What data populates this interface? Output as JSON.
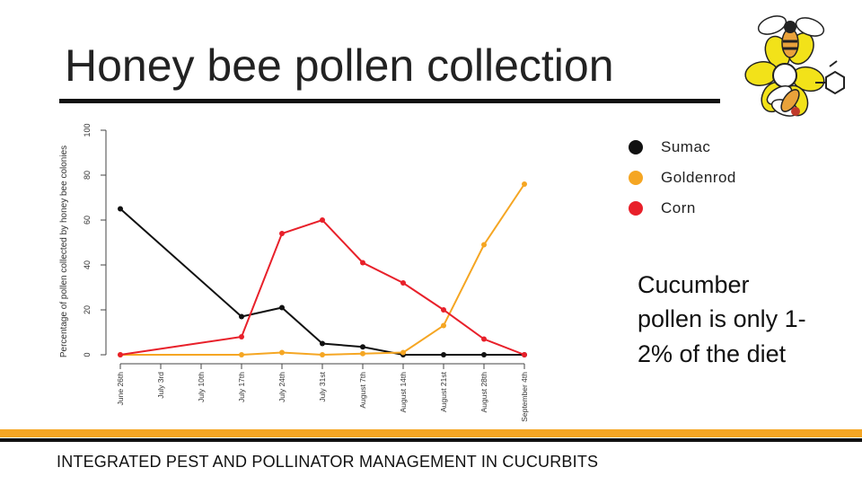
{
  "slide": {
    "title": "Honey bee pollen collection",
    "note": "Cucumber pollen is only 1-2% of the diet",
    "footer": "INTEGRATED PEST AND POLLINATOR MANAGEMENT IN CUCURBITS"
  },
  "colors": {
    "accent": "#f5a623",
    "dark": "#111111"
  },
  "logo": {
    "icon": "bee-flower-logo-icon"
  },
  "chart_data": {
    "type": "line",
    "title": "",
    "xlabel": "",
    "ylabel": "Percentage of pollen collected by honey bee colonies",
    "ylim": [
      0,
      100
    ],
    "yticks": [
      0,
      20,
      40,
      60,
      80,
      100
    ],
    "categories": [
      "June 26th",
      "July 3rd",
      "July 10th",
      "July 17th",
      "July 24th",
      "July 31st",
      "August 7th",
      "August 14th",
      "August 21st",
      "August 28th",
      "September 4th"
    ],
    "legend_position": "top-right",
    "grid": false,
    "series": [
      {
        "name": "Sumac",
        "color": "#111111",
        "points": [
          [
            0,
            65
          ],
          [
            3,
            17
          ],
          [
            4,
            21
          ],
          [
            5,
            5
          ],
          [
            6,
            3.5
          ],
          [
            7,
            0
          ],
          [
            8,
            0
          ],
          [
            9,
            0
          ],
          [
            10,
            0
          ]
        ]
      },
      {
        "name": "Goldenrod",
        "color": "#f5a623",
        "points": [
          [
            0,
            0
          ],
          [
            3,
            0
          ],
          [
            4,
            1
          ],
          [
            5,
            0
          ],
          [
            6,
            0.5
          ],
          [
            7,
            1
          ],
          [
            8,
            13
          ],
          [
            9,
            49
          ],
          [
            10,
            76
          ]
        ]
      },
      {
        "name": "Corn",
        "color": "#e8202a",
        "points": [
          [
            0,
            0
          ],
          [
            3,
            8
          ],
          [
            4,
            54
          ],
          [
            5,
            60
          ],
          [
            6,
            41
          ],
          [
            7,
            32
          ],
          [
            8,
            20
          ],
          [
            9,
            7
          ],
          [
            10,
            0
          ]
        ]
      }
    ]
  }
}
